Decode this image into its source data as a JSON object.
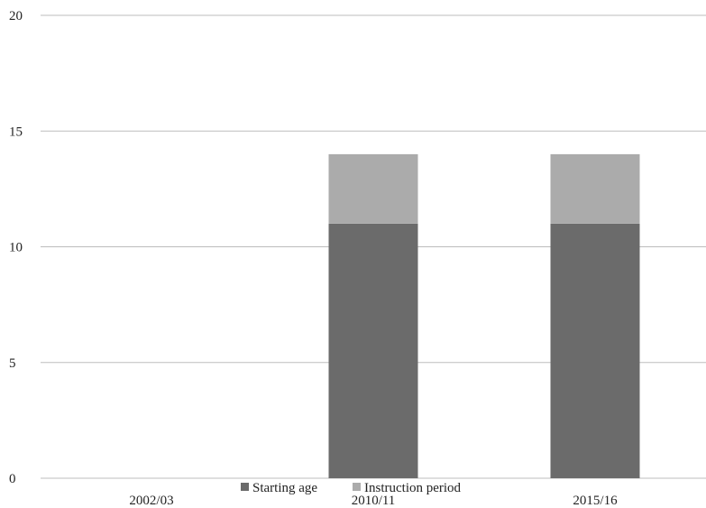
{
  "chart_data": {
    "type": "bar",
    "stacked": true,
    "title": "",
    "xlabel": "",
    "ylabel": "",
    "categories": [
      "2002/03",
      "2010/11",
      "2015/16"
    ],
    "series": [
      {
        "name": "Starting age",
        "values": [
          0,
          11,
          11
        ],
        "color": "#6b6b6b"
      },
      {
        "name": "Instruction period",
        "values": [
          0,
          3,
          3
        ],
        "color": "#ababab"
      }
    ],
    "ylim": [
      0,
      20
    ],
    "yticks": [
      0,
      5,
      10,
      15,
      20
    ],
    "grid": true,
    "legend_position": "bottom"
  }
}
